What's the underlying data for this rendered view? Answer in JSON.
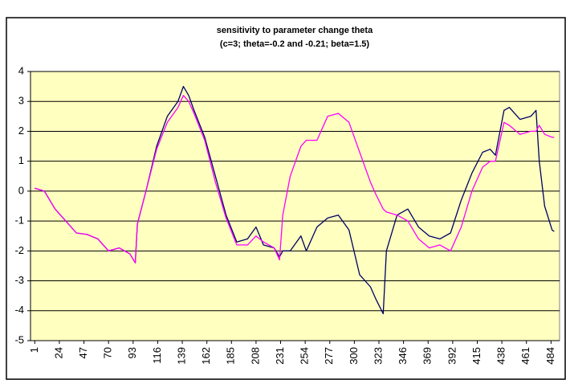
{
  "chart_data": {
    "type": "line",
    "title": "sensitivity to parameter change theta",
    "subtitle": "(c=3; theta=-0.2 and -0.21; beta=1.5)",
    "x": [
      1,
      10,
      20,
      30,
      40,
      50,
      60,
      70,
      80,
      90,
      95,
      97,
      105,
      115,
      125,
      135,
      140,
      145,
      150,
      160,
      170,
      180,
      190,
      200,
      208,
      215,
      225,
      230,
      233,
      240,
      250,
      255,
      265,
      275,
      285,
      295,
      305,
      315,
      320,
      327,
      330,
      340,
      350,
      360,
      370,
      380,
      390,
      400,
      410,
      420,
      427,
      432,
      440,
      445,
      455,
      465,
      470,
      473,
      478,
      485,
      487
    ],
    "series": [
      {
        "color": "#000066",
        "values": [
          0.1,
          0,
          -0.6,
          -1.0,
          -1.4,
          -1.45,
          -1.6,
          -2.0,
          -1.9,
          -2.1,
          -2.4,
          -1.1,
          0,
          1.5,
          2.5,
          3.0,
          3.5,
          3.2,
          2.7,
          1.8,
          0.5,
          -0.8,
          -1.7,
          -1.6,
          -1.2,
          -1.8,
          -1.9,
          -2.2,
          -2.0,
          -2.0,
          -1.5,
          -2.0,
          -1.2,
          -0.9,
          -0.8,
          -1.3,
          -2.8,
          -3.2,
          -3.6,
          -4.1,
          -2.0,
          -0.8,
          -0.6,
          -1.2,
          -1.5,
          -1.6,
          -1.4,
          -0.3,
          0.6,
          1.3,
          1.4,
          1.2,
          2.7,
          2.8,
          2.4,
          2.5,
          2.7,
          1.0,
          -0.5,
          -1.3,
          -1.35
        ]
      },
      {
        "color": "#ff00ff",
        "values": [
          0.1,
          0,
          -0.6,
          -1.0,
          -1.4,
          -1.45,
          -1.6,
          -2.0,
          -1.9,
          -2.1,
          -2.4,
          -1.1,
          0,
          1.4,
          2.3,
          2.8,
          3.2,
          3.0,
          2.6,
          1.7,
          0.3,
          -0.9,
          -1.8,
          -1.8,
          -1.5,
          -1.7,
          -1.9,
          -2.3,
          -0.8,
          0.5,
          1.5,
          1.7,
          1.7,
          2.5,
          2.6,
          2.3,
          1.3,
          0.3,
          -0.1,
          -0.6,
          -0.7,
          -0.8,
          -1.0,
          -1.6,
          -1.9,
          -1.8,
          -2.0,
          -1.2,
          0,
          0.8,
          1.0,
          1.0,
          2.3,
          2.2,
          1.9,
          2.0,
          2.0,
          2.2,
          1.9,
          1.8,
          1.8
        ]
      }
    ],
    "xlim": [
      -3,
      492
    ],
    "xticks": [
      1,
      24,
      47,
      70,
      93,
      116,
      139,
      162,
      185,
      208,
      231,
      254,
      277,
      300,
      323,
      346,
      369,
      392,
      415,
      438,
      461,
      484
    ],
    "ylim": [
      -5,
      4
    ],
    "yticks": [
      -5,
      -4,
      -3,
      -2,
      -1,
      0,
      1,
      2,
      3,
      4
    ],
    "grid": true,
    "plot_background": "#ffffc0"
  }
}
